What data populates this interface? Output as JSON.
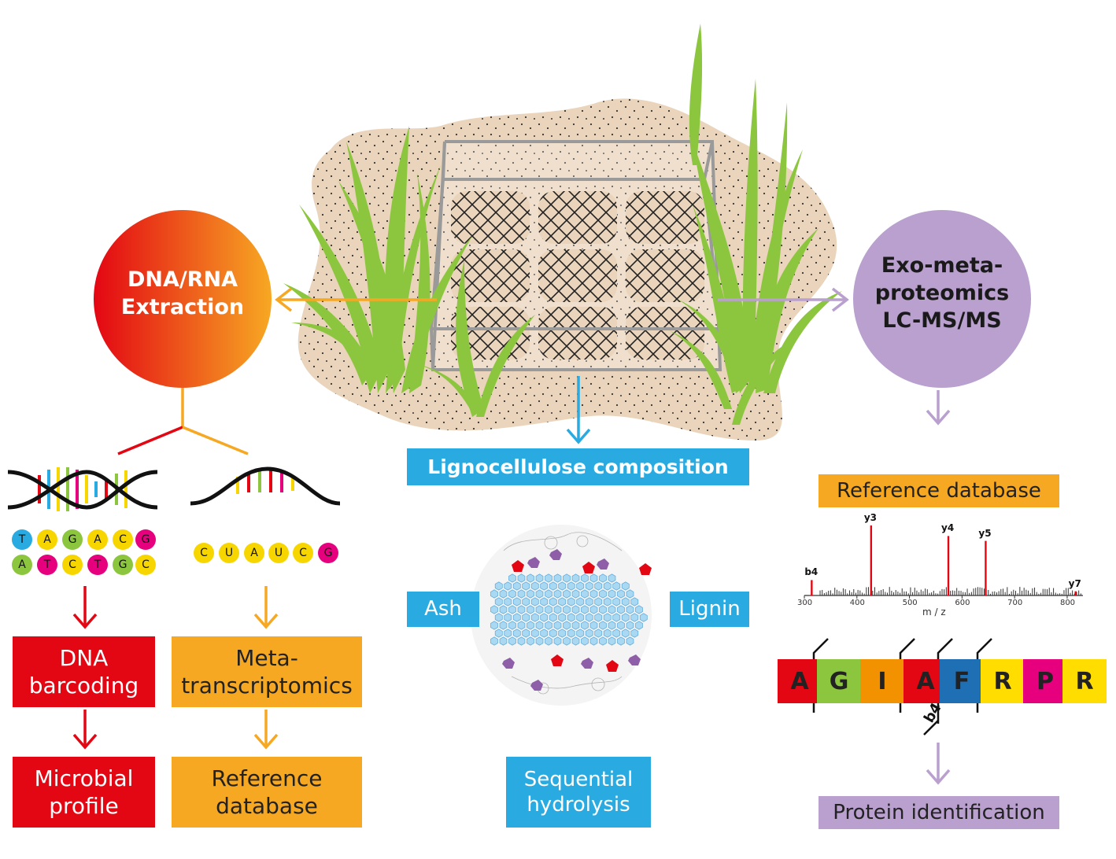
{
  "colors": {
    "red": "#e30613",
    "orange": "#f7a823",
    "blue": "#29abe2",
    "purple": "#b9a0cf",
    "sand": "#ead4bb",
    "grass": "#8cc63f",
    "frame": "#9a9a9a"
  },
  "extraction": {
    "line1": "DNA/RNA",
    "line2": "Extraction"
  },
  "proteomics": {
    "line1": "Exo-meta-",
    "line2": "proteomics",
    "line3": "LC-MS/MS"
  },
  "dna_sequence": {
    "top": [
      "T",
      "A",
      "G",
      "A",
      "C",
      "G"
    ],
    "bottom": [
      "A",
      "T",
      "C",
      "T",
      "G",
      "C"
    ]
  },
  "rna_sequence": [
    "C",
    "U",
    "A",
    "U",
    "C",
    "G"
  ],
  "left_boxes": {
    "dna_barcoding": {
      "line1": "DNA",
      "line2": "barcoding"
    },
    "microbial_profile": {
      "line1": "Microbial",
      "line2": "profile"
    },
    "metatranscriptomics": {
      "line1": "Meta-",
      "line2": "transcriptomics"
    },
    "reference_database": {
      "line1": "Reference",
      "line2": "database"
    }
  },
  "center": {
    "lignocellulose": "Lignocellulose composition",
    "ash": "Ash",
    "lignin": "Lignin",
    "sequential_line1": "Sequential",
    "sequential_line2": "hydrolysis"
  },
  "right": {
    "reference_database": "Reference database",
    "protein_identification": "Protein identification"
  },
  "spectrum": {
    "xlabel": "m / z",
    "xticks": [
      300,
      400,
      500,
      600,
      700,
      800
    ],
    "xrange": [
      300,
      830
    ],
    "peaks": [
      {
        "label": "b4",
        "mz": 314,
        "intensity": 0.22
      },
      {
        "label": "y3",
        "mz": 427,
        "intensity": 1.0
      },
      {
        "label": "y4",
        "mz": 574,
        "intensity": 0.85
      },
      {
        "label": "y5",
        "mz": 645,
        "intensity": 0.78
      },
      {
        "label": "y7",
        "mz": 816,
        "intensity": 0.06
      }
    ]
  },
  "peptide": {
    "residues": [
      "A",
      "G",
      "I",
      "A",
      "F",
      "R",
      "P",
      "R"
    ],
    "fragment_label": "b4"
  }
}
